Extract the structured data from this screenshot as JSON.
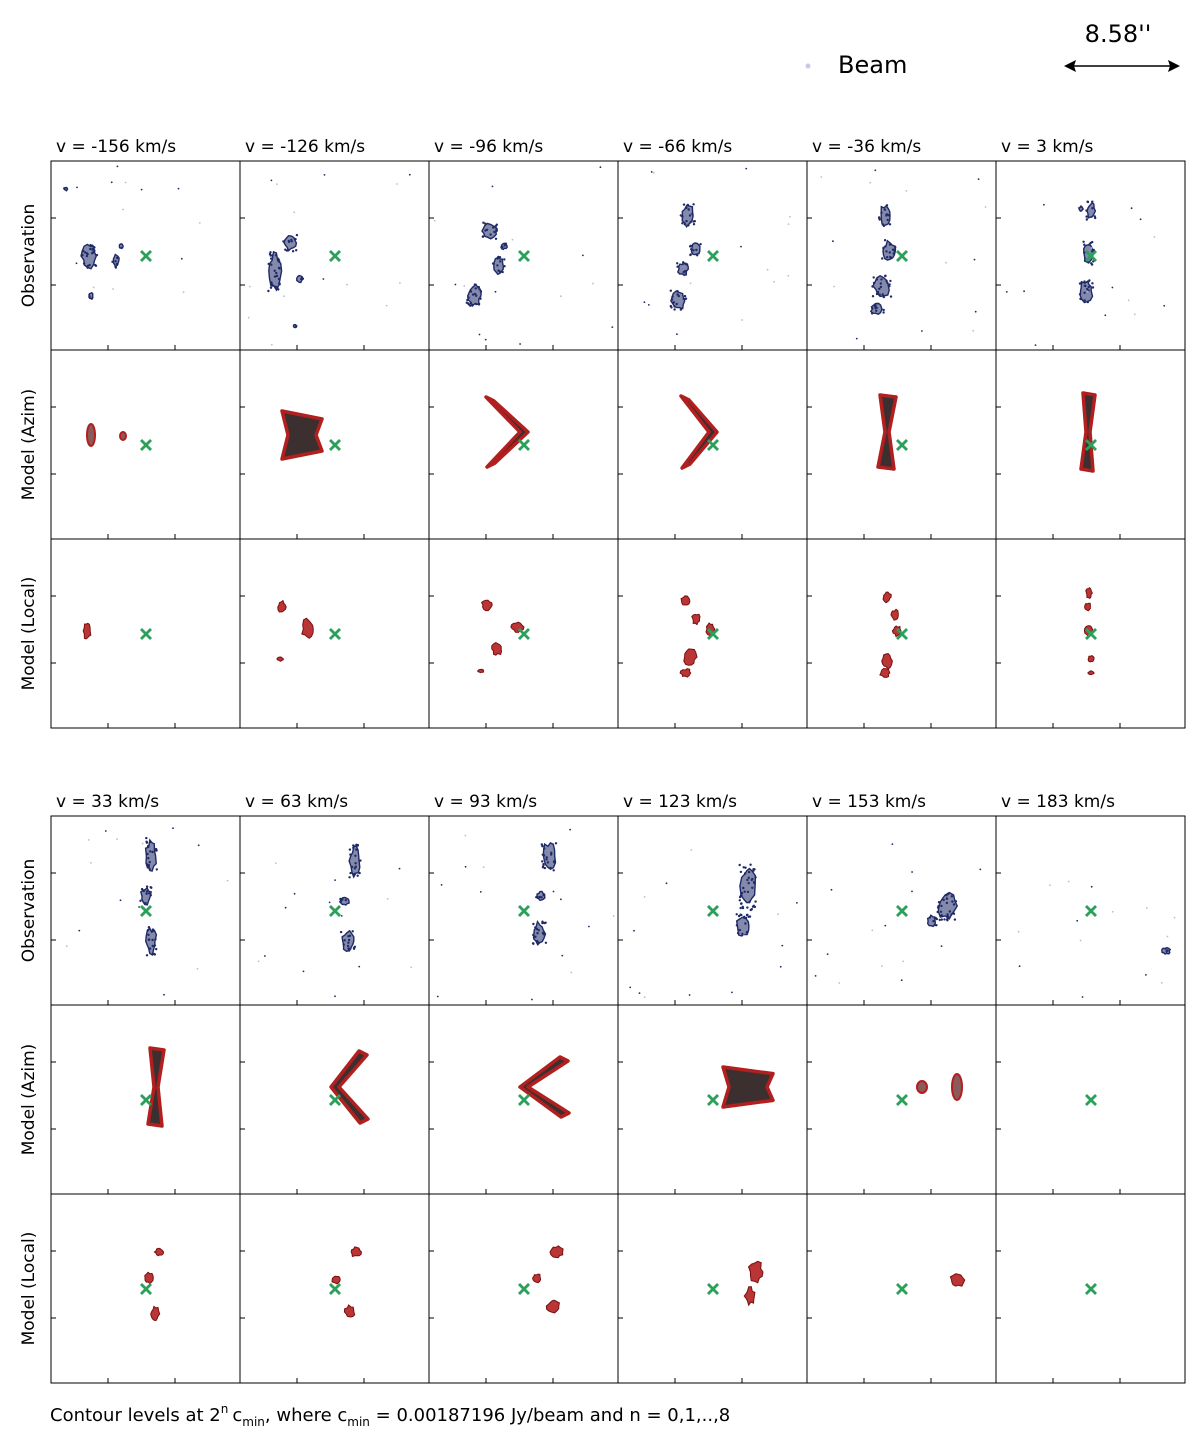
{
  "header": {
    "beam_label": "Beam",
    "scale_label": "8.58''"
  },
  "row_labels": [
    "Observation",
    "Model (Azim)",
    "Model (Local)"
  ],
  "footer": {
    "prefix": "Contour levels at 2",
    "exp": "n",
    "c": "c",
    "sub": "min",
    "middle": ", where c",
    "suffix": " = 0.00187196 Jy/beam and n = 0,1,..,8"
  },
  "colors": {
    "observation": "#1f2a66",
    "model": "#b21f1f",
    "model_core": "#1a0a0a",
    "marker": "#2aa05a",
    "frame": "#000000"
  },
  "chart_data": {
    "type": "channel-map",
    "groups": [
      {
        "labels": [
          "v = -156 km/s",
          "v = -126 km/s",
          "v = -96 km/s",
          "v = -66 km/s",
          "v = -36 km/s",
          "v = 3 km/s"
        ],
        "velocities": [
          -156,
          -126,
          -96,
          -66,
          -36,
          3
        ]
      },
      {
        "labels": [
          "v = 33 km/s",
          "v = 63 km/s",
          "v = 93 km/s",
          "v = 123 km/s",
          "v = 153 km/s",
          "v = 183 km/s"
        ],
        "velocities": [
          33,
          63,
          93,
          123,
          153,
          183
        ]
      }
    ],
    "contour_levels_n": [
      0,
      1,
      2,
      3,
      4,
      5,
      6,
      7,
      8
    ],
    "c_min_jy_per_beam": 0.00187196,
    "center_marker": "x",
    "beam_size_arcsec": 8.58
  }
}
